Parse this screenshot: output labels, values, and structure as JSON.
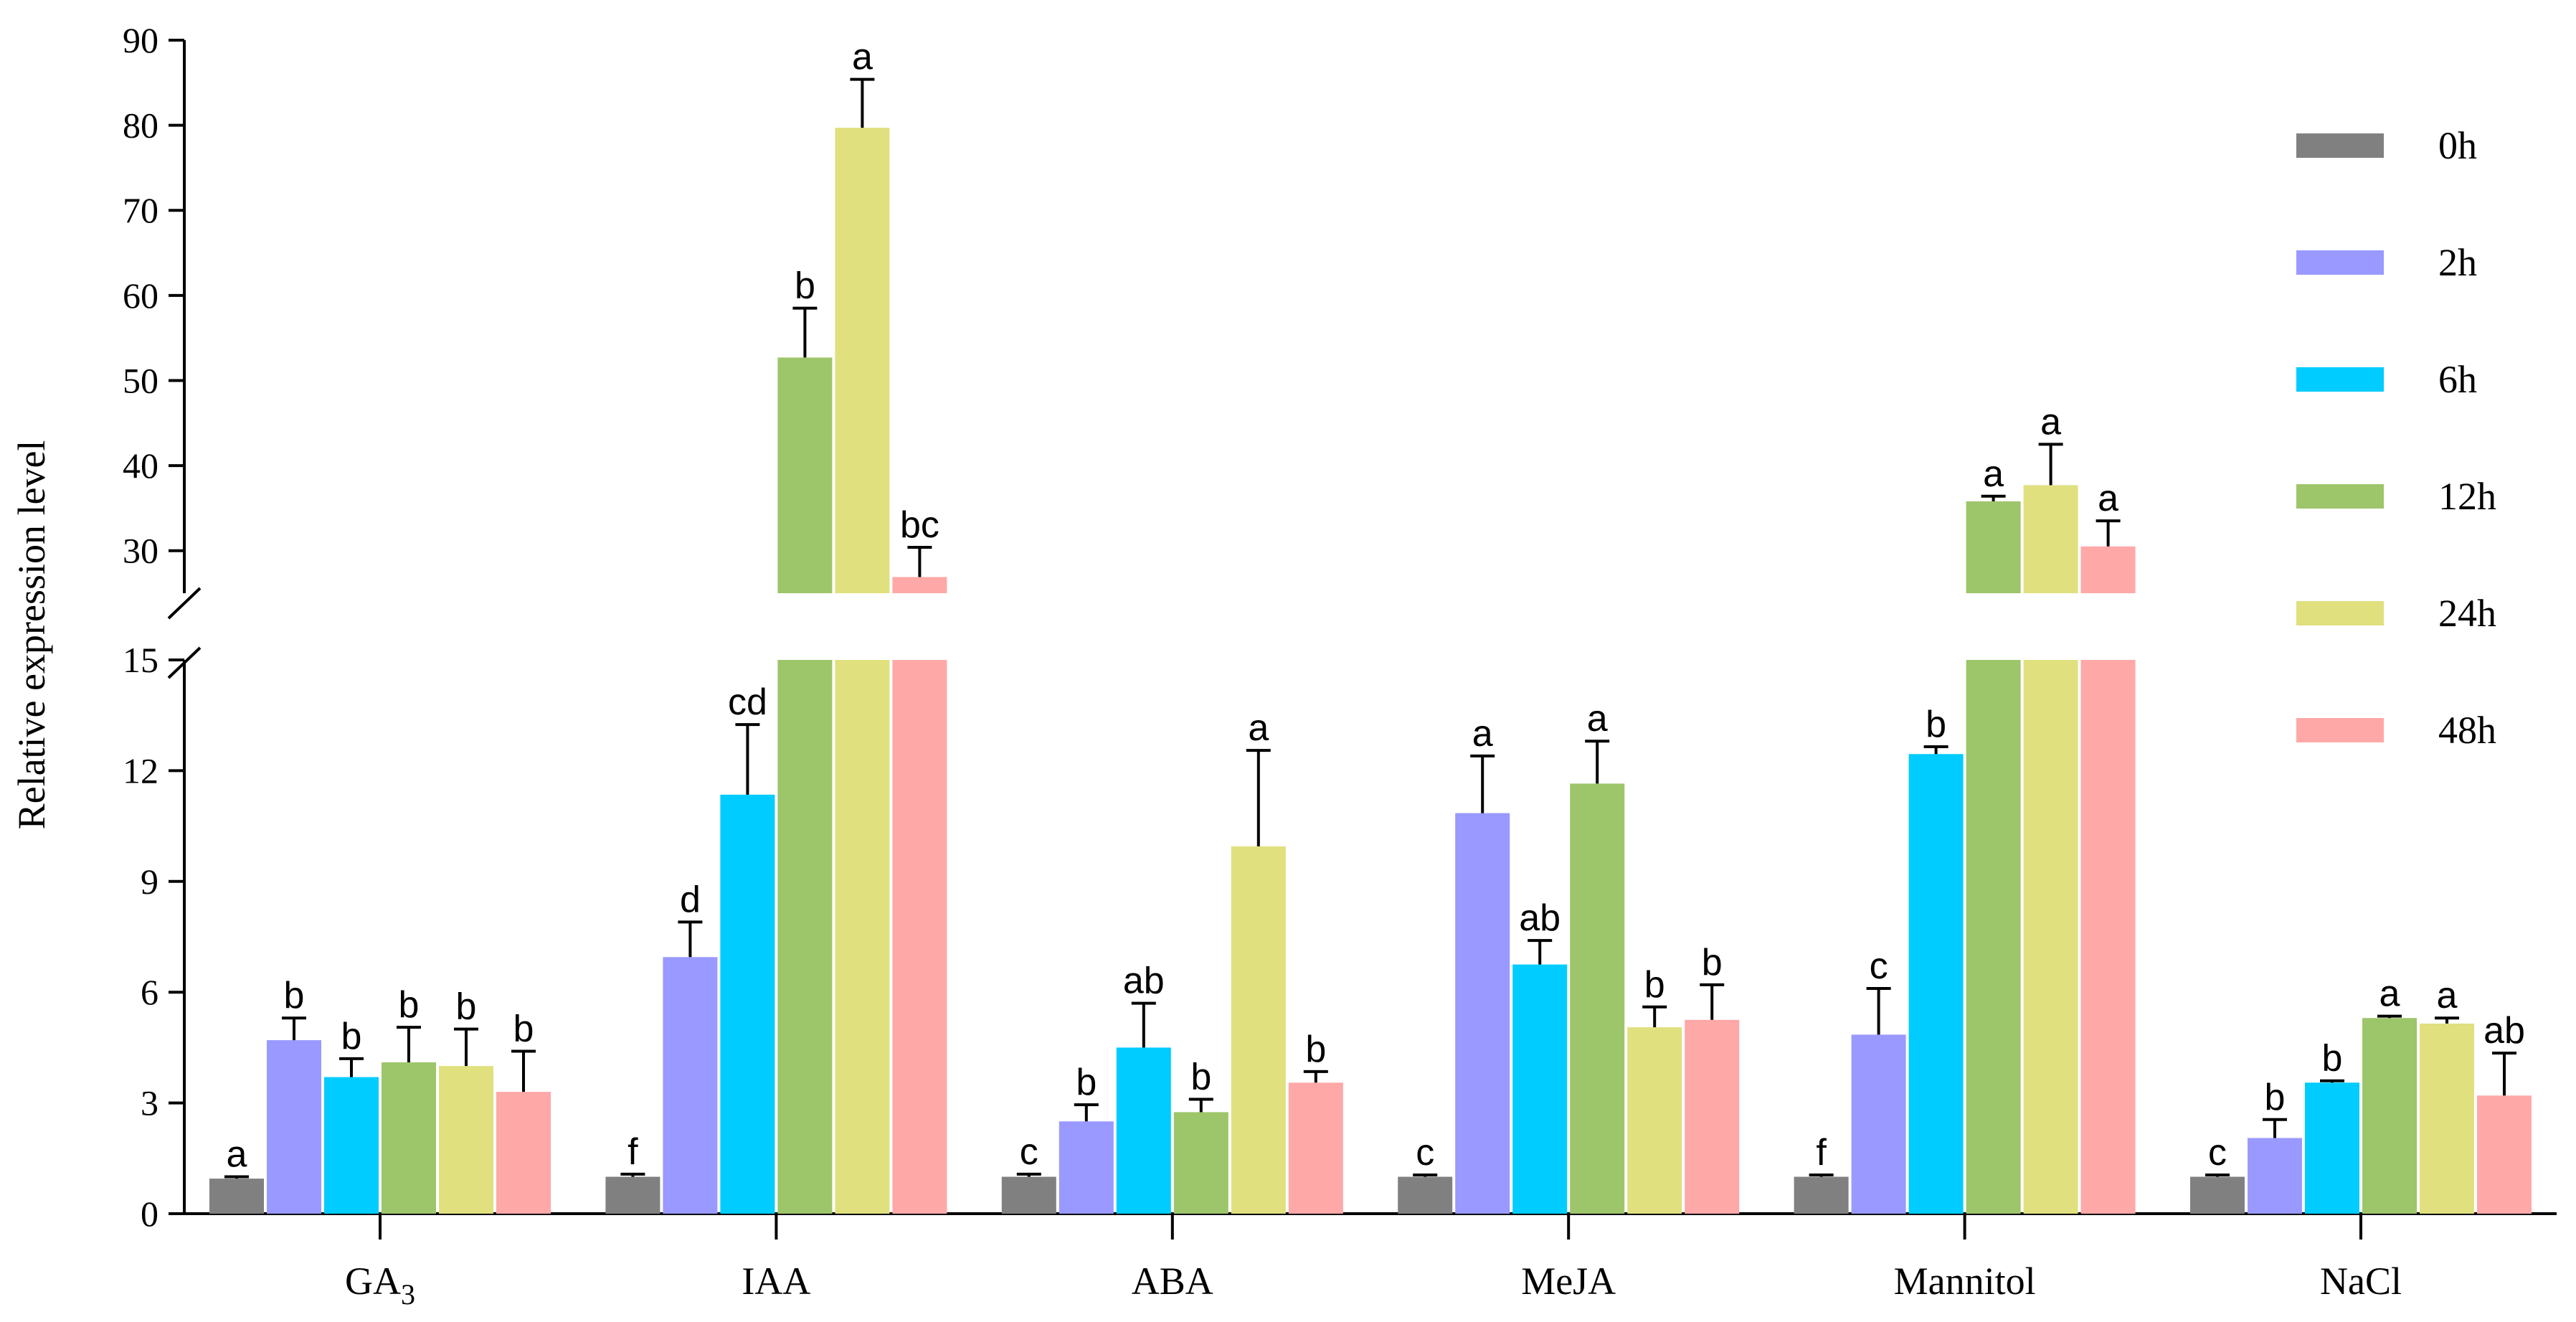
{
  "chart_data": {
    "type": "bar",
    "ylabel": "Relative expression level",
    "categories": [
      {
        "main": "GA",
        "sub": "3"
      },
      {
        "main": "IAA",
        "sub": ""
      },
      {
        "main": "ABA",
        "sub": ""
      },
      {
        "main": "MeJA",
        "sub": ""
      },
      {
        "main": "Mannitol",
        "sub": ""
      },
      {
        "main": "NaCl",
        "sub": ""
      }
    ],
    "axis_break": {
      "lower_range": [
        0,
        15
      ],
      "upper_range": [
        25,
        90
      ]
    },
    "lower_ticks": [
      "0",
      "3",
      "6",
      "9",
      "12",
      "15"
    ],
    "upper_ticks": [
      "30",
      "40",
      "50",
      "60",
      "70",
      "80",
      "90"
    ],
    "series": [
      {
        "name": "0h",
        "color": "#808080",
        "values": [
          0.95,
          1.0,
          1.0,
          1.0,
          1.0,
          1.0
        ],
        "errors": [
          0.05,
          0.07,
          0.07,
          0.05,
          0.05,
          0.05
        ],
        "labels": [
          "a",
          "f",
          "c",
          "c",
          "f",
          "c"
        ]
      },
      {
        "name": "2h",
        "color": "#9999FF",
        "values": [
          4.7,
          6.95,
          2.5,
          10.85,
          4.85,
          2.05
        ],
        "errors": [
          0.6,
          0.95,
          0.45,
          1.55,
          1.25,
          0.5
        ],
        "labels": [
          "b",
          "d",
          "b",
          "a",
          "c",
          "b"
        ]
      },
      {
        "name": "6h",
        "color": "#00CCFF",
        "values": [
          3.7,
          11.35,
          4.5,
          6.75,
          12.45,
          3.55
        ],
        "errors": [
          0.5,
          1.9,
          1.2,
          0.65,
          0.2,
          0.05
        ],
        "labels": [
          "b",
          "cd",
          "ab",
          "ab",
          "b",
          "b"
        ]
      },
      {
        "name": "12h",
        "color": "#9DC56A",
        "values": [
          4.1,
          52.7,
          2.75,
          11.65,
          35.8,
          5.3
        ],
        "errors": [
          0.95,
          5.8,
          0.35,
          1.15,
          0.6,
          0.05
        ],
        "labels": [
          "b",
          "b",
          "b",
          "a",
          "a",
          "a"
        ]
      },
      {
        "name": "24h",
        "color": "#E0E07F",
        "values": [
          4.0,
          79.7,
          9.95,
          5.05,
          37.7,
          5.15
        ],
        "errors": [
          1.0,
          5.7,
          2.6,
          0.55,
          4.8,
          0.15
        ],
        "labels": [
          "b",
          "a",
          "a",
          "b",
          "a",
          "a"
        ]
      },
      {
        "name": "48h",
        "color": "#FFA8A8",
        "values": [
          3.3,
          26.9,
          3.55,
          5.25,
          30.5,
          3.2
        ],
        "errors": [
          1.1,
          3.5,
          0.3,
          0.95,
          3.0,
          1.15
        ],
        "labels": [
          "b",
          "bc",
          "b",
          "b",
          "a",
          "ab"
        ]
      }
    ]
  }
}
